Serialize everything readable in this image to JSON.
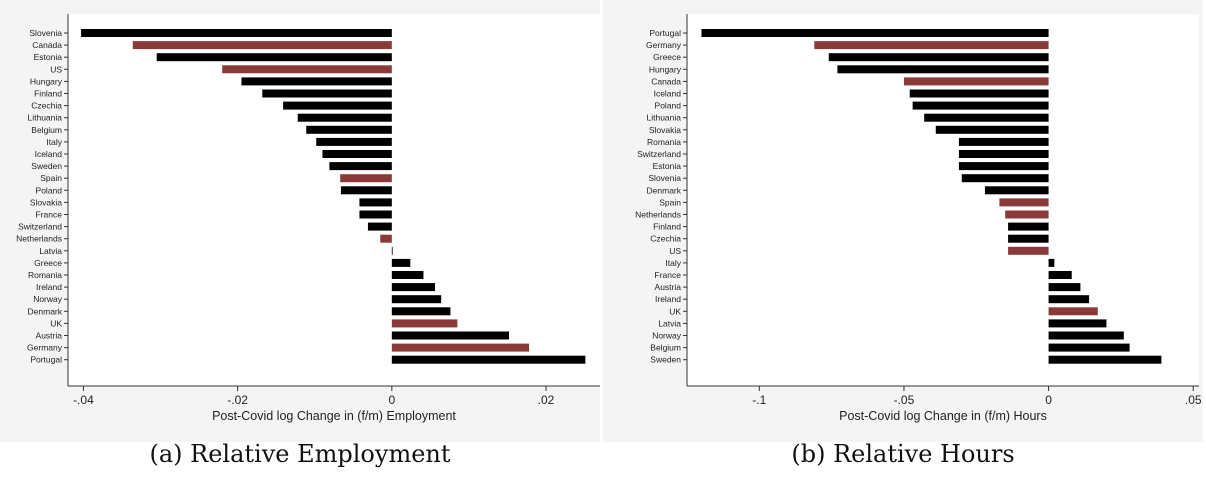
{
  "chart_data": [
    {
      "type": "bar",
      "orientation": "horizontal",
      "caption": "(a) Relative Employment",
      "xlabel": "Post-Covid log Change in (f/m) Employment",
      "xlim": [
        -0.042,
        0.027
      ],
      "xticks": [
        -0.04,
        -0.02,
        0,
        0.02
      ],
      "xtick_labels": [
        "-.04",
        "-.02",
        "0",
        ".02"
      ],
      "colors": {
        "default": "#000000",
        "highlight": "#8b3a3a"
      },
      "bars": [
        {
          "country": "Slovenia",
          "value": -0.0403,
          "highlight": false
        },
        {
          "country": "Canada",
          "value": -0.0336,
          "highlight": true
        },
        {
          "country": "Estonia",
          "value": -0.0305,
          "highlight": false
        },
        {
          "country": "US",
          "value": -0.022,
          "highlight": true
        },
        {
          "country": "Hungary",
          "value": -0.0195,
          "highlight": false
        },
        {
          "country": "Finland",
          "value": -0.0168,
          "highlight": false
        },
        {
          "country": "Czechia",
          "value": -0.0141,
          "highlight": false
        },
        {
          "country": "Lithuania",
          "value": -0.0122,
          "highlight": false
        },
        {
          "country": "Belgium",
          "value": -0.0111,
          "highlight": false
        },
        {
          "country": "Italy",
          "value": -0.0098,
          "highlight": false
        },
        {
          "country": "Iceland",
          "value": -0.009,
          "highlight": false
        },
        {
          "country": "Sweden",
          "value": -0.0081,
          "highlight": false
        },
        {
          "country": "Spain",
          "value": -0.0067,
          "highlight": true
        },
        {
          "country": "Poland",
          "value": -0.0066,
          "highlight": false
        },
        {
          "country": "Slovakia",
          "value": -0.0042,
          "highlight": false
        },
        {
          "country": "France",
          "value": -0.0042,
          "highlight": false
        },
        {
          "country": "Switzerland",
          "value": -0.0031,
          "highlight": false
        },
        {
          "country": "Netherlands",
          "value": -0.0015,
          "highlight": true
        },
        {
          "country": "Latvia",
          "value": 0.0001,
          "highlight": false
        },
        {
          "country": "Greece",
          "value": 0.0024,
          "highlight": false
        },
        {
          "country": "Romania",
          "value": 0.0041,
          "highlight": false
        },
        {
          "country": "Ireland",
          "value": 0.0056,
          "highlight": false
        },
        {
          "country": "Norway",
          "value": 0.0064,
          "highlight": false
        },
        {
          "country": "Denmark",
          "value": 0.0076,
          "highlight": false
        },
        {
          "country": "UK",
          "value": 0.0085,
          "highlight": true
        },
        {
          "country": "Austria",
          "value": 0.0152,
          "highlight": false
        },
        {
          "country": "Germany",
          "value": 0.0178,
          "highlight": true
        },
        {
          "country": "Portugal",
          "value": 0.0251,
          "highlight": false
        }
      ]
    },
    {
      "type": "bar",
      "orientation": "horizontal",
      "caption": "(b) Relative Hours",
      "xlabel": "Post-Covid log Change in (f/m) Hours",
      "xlim": [
        -0.125,
        0.052
      ],
      "xticks": [
        -0.1,
        -0.05,
        0,
        0.05
      ],
      "xtick_labels": [
        "-.1",
        "-.05",
        "0",
        ".05"
      ],
      "colors": {
        "default": "#000000",
        "highlight": "#8b3a3a"
      },
      "bars": [
        {
          "country": "Portugal",
          "value": -0.12,
          "highlight": false
        },
        {
          "country": "Germany",
          "value": -0.081,
          "highlight": true
        },
        {
          "country": "Greece",
          "value": -0.076,
          "highlight": false
        },
        {
          "country": "Hungary",
          "value": -0.073,
          "highlight": false
        },
        {
          "country": "Canada",
          "value": -0.05,
          "highlight": true
        },
        {
          "country": "Iceland",
          "value": -0.048,
          "highlight": false
        },
        {
          "country": "Poland",
          "value": -0.047,
          "highlight": false
        },
        {
          "country": "Lithuania",
          "value": -0.043,
          "highlight": false
        },
        {
          "country": "Slovakia",
          "value": -0.039,
          "highlight": false
        },
        {
          "country": "Romania",
          "value": -0.031,
          "highlight": false
        },
        {
          "country": "Switzerland",
          "value": -0.031,
          "highlight": false
        },
        {
          "country": "Estonia",
          "value": -0.031,
          "highlight": false
        },
        {
          "country": "Slovenia",
          "value": -0.03,
          "highlight": false
        },
        {
          "country": "Denmark",
          "value": -0.022,
          "highlight": false
        },
        {
          "country": "Spain",
          "value": -0.017,
          "highlight": true
        },
        {
          "country": "Netherlands",
          "value": -0.015,
          "highlight": true
        },
        {
          "country": "Finland",
          "value": -0.014,
          "highlight": false
        },
        {
          "country": "Czechia",
          "value": -0.014,
          "highlight": false
        },
        {
          "country": "US",
          "value": -0.014,
          "highlight": true
        },
        {
          "country": "Italy",
          "value": 0.002,
          "highlight": false
        },
        {
          "country": "France",
          "value": 0.008,
          "highlight": false
        },
        {
          "country": "Austria",
          "value": 0.011,
          "highlight": false
        },
        {
          "country": "Ireland",
          "value": 0.014,
          "highlight": false
        },
        {
          "country": "UK",
          "value": 0.017,
          "highlight": true
        },
        {
          "country": "Latvia",
          "value": 0.02,
          "highlight": false
        },
        {
          "country": "Norway",
          "value": 0.026,
          "highlight": false
        },
        {
          "country": "Belgium",
          "value": 0.028,
          "highlight": false
        },
        {
          "country": "Sweden",
          "value": 0.039,
          "highlight": false
        }
      ]
    }
  ]
}
